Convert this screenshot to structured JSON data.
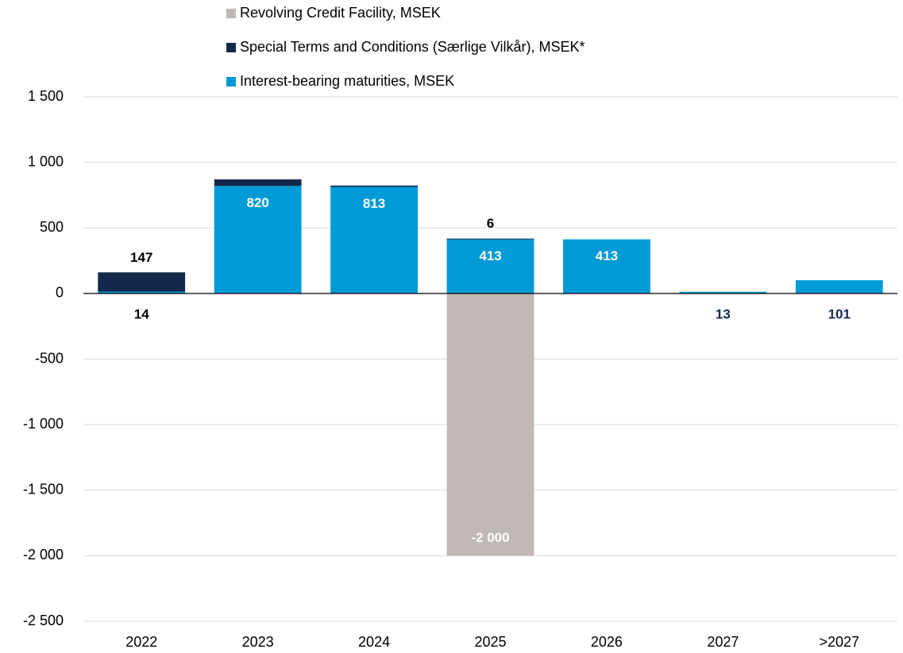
{
  "chart_data": {
    "type": "stacked_bar",
    "categories": [
      "2022",
      "2023",
      "2024",
      "2025",
      "2026",
      "2027",
      ">2027"
    ],
    "series": [
      {
        "name": "Revolving Credit Facility, MSEK",
        "color": "#bfb8b4",
        "values": [
          null,
          null,
          null,
          -2000,
          null,
          null,
          null
        ],
        "value_labels": [
          null,
          null,
          null,
          "-2 000",
          null,
          null,
          null
        ]
      },
      {
        "name": "Special Terms and Conditions (Særlige Vilkår), MSEK*",
        "color": "#13294b",
        "values": [
          147,
          50,
          10,
          6,
          null,
          null,
          null
        ],
        "value_labels": [
          "147",
          null,
          null,
          "6",
          null,
          null,
          null
        ]
      },
      {
        "name": "Interest-bearing maturities, MSEK",
        "color": "#009ad7",
        "values": [
          14,
          820,
          813,
          413,
          413,
          13,
          101
        ],
        "value_labels": [
          "14",
          "820",
          "813",
          "413",
          "413",
          "13",
          "101"
        ]
      }
    ],
    "ylim": [
      -2500,
      1500
    ],
    "yticks": [
      {
        "value": -2500,
        "label": "-2 500"
      },
      {
        "value": -2000,
        "label": "-2 000"
      },
      {
        "value": -1500,
        "label": "-1 500"
      },
      {
        "value": -1000,
        "label": "-1 000"
      },
      -500,
      0,
      500,
      {
        "value": 1000,
        "label": "1 000"
      },
      {
        "value": 1500,
        "label": "1 500"
      }
    ],
    "grid": true
  }
}
